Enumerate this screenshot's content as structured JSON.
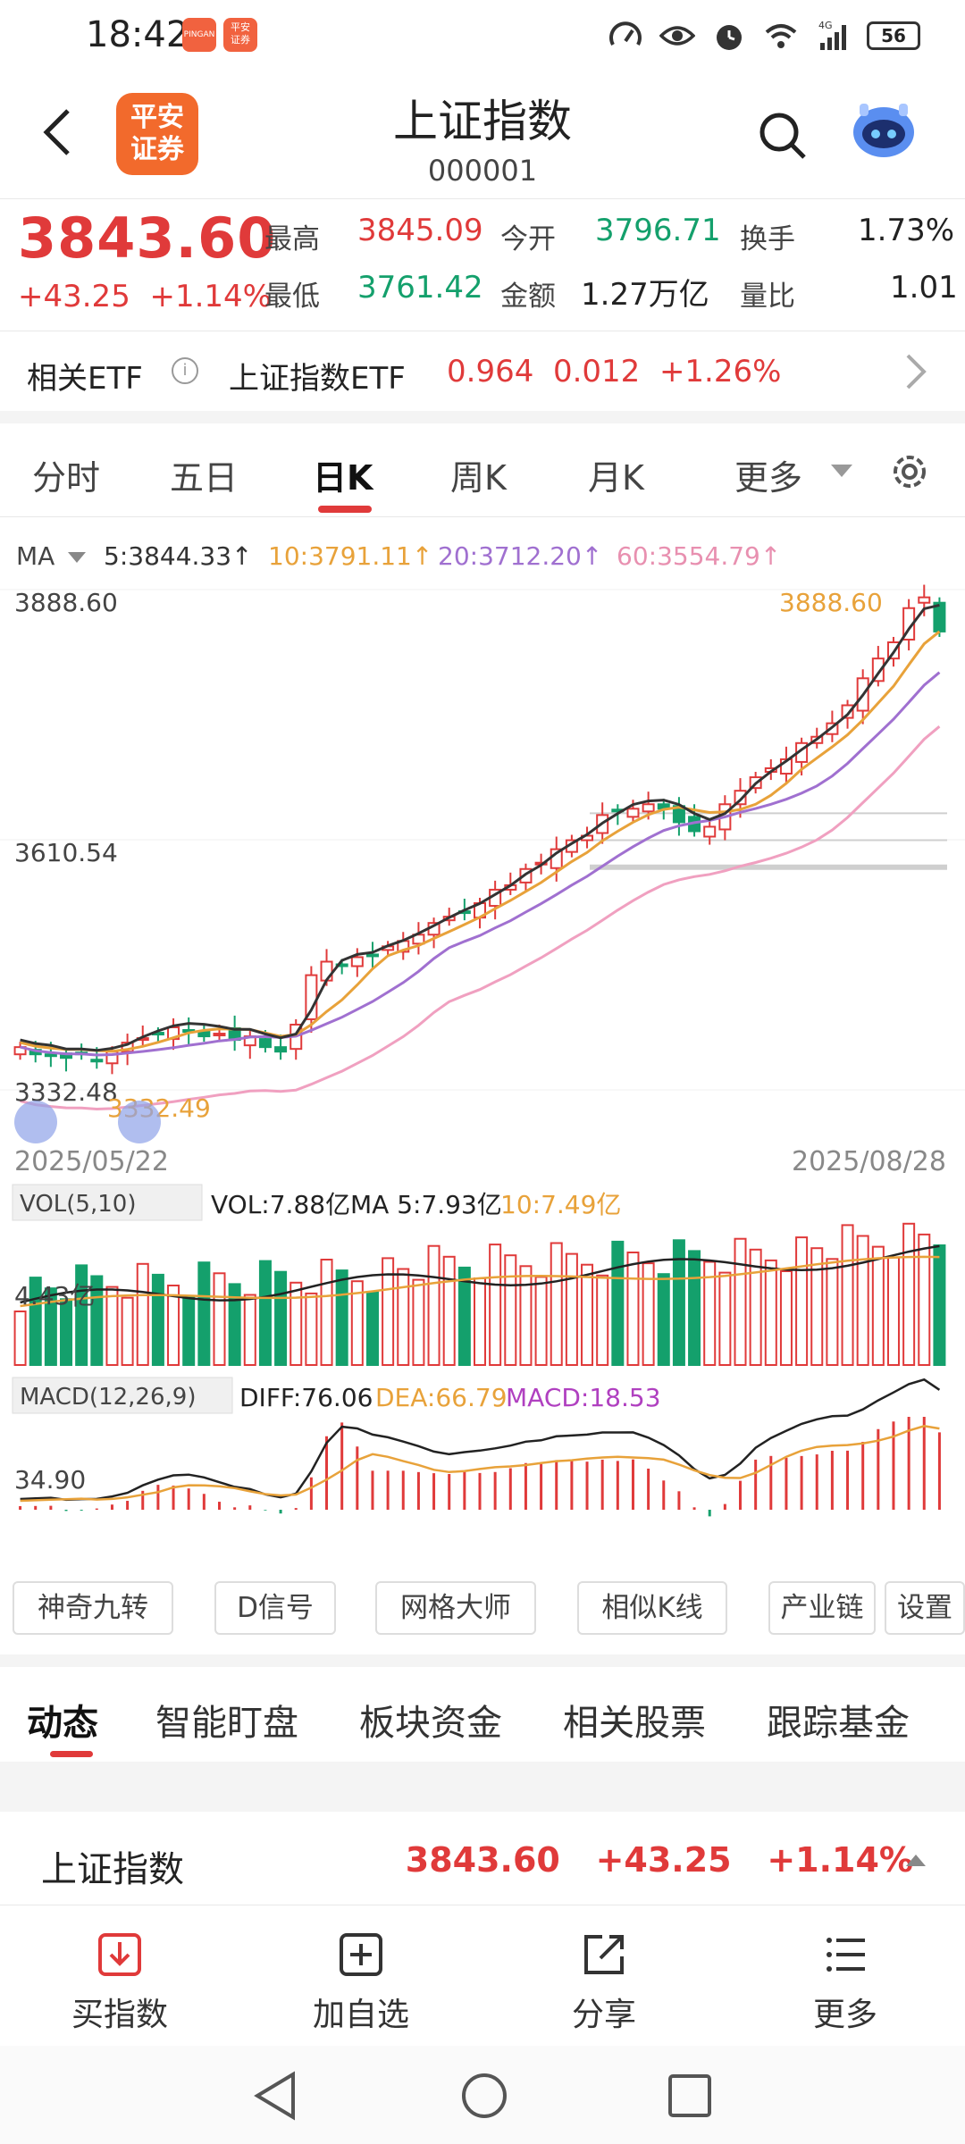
{
  "status": {
    "time": "18:42",
    "network": "4G",
    "battery": "56",
    "app1": "PINGAN",
    "app2": "平安\n证券"
  },
  "header": {
    "title": "上证指数",
    "code": "000001",
    "logo_line1": "平安",
    "logo_line2": "证券"
  },
  "quote": {
    "price": "3843.60",
    "change": "+43.25",
    "change_pct": "+1.14%",
    "high_label": "最高",
    "high": "3845.09",
    "low_label": "最低",
    "low": "3761.42",
    "open_label": "今开",
    "open": "3796.71",
    "amount_label": "金额",
    "amount": "1.27万亿",
    "turnover_label": "换手",
    "turnover": "1.73%",
    "volratio_label": "量比",
    "volratio": "1.01"
  },
  "etf": {
    "label": "相关ETF",
    "info": "i",
    "name": "上证指数ETF",
    "price": "0.964",
    "change": "0.012",
    "change_pct": "+1.26%"
  },
  "period_tabs": [
    "分时",
    "五日",
    "日K",
    "周K",
    "月K",
    "更多"
  ],
  "ma_legend": {
    "label": "MA",
    "ma5": "5:3844.33↑",
    "ma10": "10:3791.11↑",
    "ma20": "20:3712.20↑",
    "ma60": "60:3554.79↑"
  },
  "chart_labels": {
    "y_high": "3888.60",
    "y_mid": "3610.54",
    "y_low": "3332.48",
    "high_mark": "3888.60",
    "low_mark": "3332.49",
    "date_start": "2025/05/22",
    "date_end": "2025/08/28",
    "vol_indicator": "VOL(5,10)",
    "vol_value": "VOL:7.88亿",
    "vol_ma5": "MA 5:7.93亿",
    "vol_ma10": "10:7.49亿",
    "vol_axis": "4.43亿",
    "macd_indicator": "MACD(12,26,9)",
    "diff": "DIFF:76.06",
    "dea": "DEA:66.79",
    "macd": "MACD:18.53",
    "macd_axis": "34.90"
  },
  "colors": {
    "up": "#e03a3a",
    "down": "#14a06c",
    "ma5": "#333333",
    "ma10": "#e8a23a",
    "ma20": "#a070d0",
    "ma60": "#f0a0c0"
  },
  "chart_data": {
    "type": "candlestick",
    "title": "上证指数 日K",
    "x_range": [
      "2025/05/22",
      "2025/08/28"
    ],
    "ylim": [
      3332.48,
      3888.6
    ],
    "y_ticks": [
      3888.6,
      3610.54,
      3332.48
    ],
    "close_approx": [
      3380,
      3372,
      3370,
      3368,
      3372,
      3365,
      3375,
      3385,
      3390,
      3395,
      3402,
      3398,
      3392,
      3395,
      3388,
      3392,
      3380,
      3375,
      3405,
      3460,
      3475,
      3470,
      3480,
      3482,
      3492,
      3498,
      3505,
      3518,
      3525,
      3530,
      3540,
      3555,
      3560,
      3578,
      3585,
      3600,
      3610,
      3615,
      3638,
      3642,
      3645,
      3650,
      3645,
      3630,
      3620,
      3625,
      3650,
      3665,
      3680,
      3690,
      3700,
      3718,
      3725,
      3740,
      3760,
      3790,
      3812,
      3830,
      3868,
      3880,
      3842
    ]
  },
  "features": [
    "神奇九转",
    "D信号",
    "网格大师",
    "相似K线",
    "产业链",
    "设置"
  ],
  "bottom_tabs": [
    "动态",
    "智能盯盘",
    "板块资金",
    "相关股票",
    "跟踪基金"
  ],
  "index_row": {
    "name": "上证指数",
    "price": "3843.60",
    "change": "+43.25",
    "change_pct": "+1.14%"
  },
  "actions": [
    "买指数",
    "加自选",
    "分享",
    "更多"
  ]
}
